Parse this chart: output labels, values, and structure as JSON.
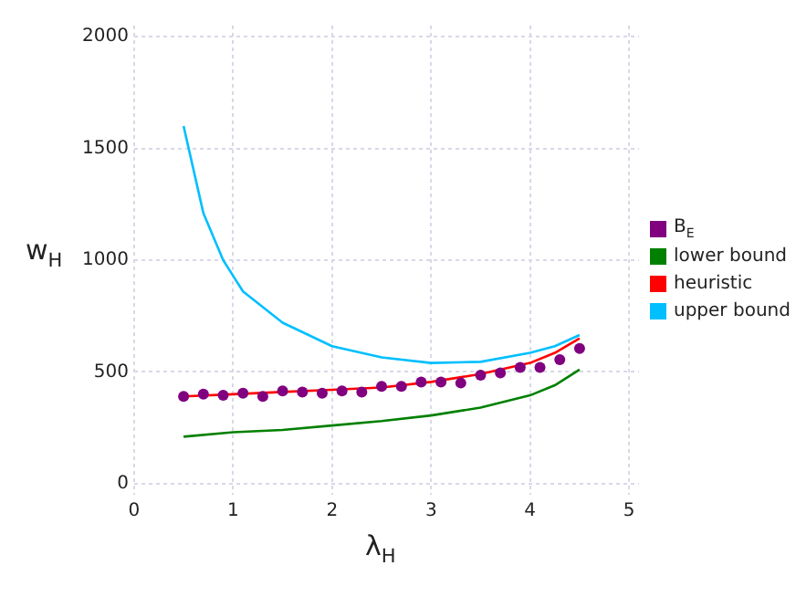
{
  "chart_data": {
    "type": "line",
    "xlabel": "λ$_{H}$",
    "ylabel": "w$_{H}$",
    "xlim": [
      0,
      5.1
    ],
    "xticks": [
      0,
      1,
      2,
      3,
      4,
      5
    ],
    "ylim": [
      -50,
      2050
    ],
    "yticks": [
      0,
      500,
      1000,
      1500,
      2000
    ],
    "grid": true,
    "legend": "right",
    "line_style": "solid",
    "series": [
      {
        "name": "B$_{E}$",
        "type": "scatter",
        "marker": "circle",
        "color": "#800080",
        "x": [
          0.5,
          0.7,
          0.9,
          1.1,
          1.3,
          1.5,
          1.7,
          1.9,
          2.1,
          2.3,
          2.5,
          2.7,
          2.9,
          3.1,
          3.3,
          3.5,
          3.7,
          3.9,
          4.1,
          4.3,
          4.5
        ],
        "values": [
          390,
          400,
          395,
          405,
          390,
          415,
          410,
          405,
          415,
          410,
          435,
          435,
          455,
          455,
          450,
          485,
          495,
          520,
          520,
          555,
          605
        ]
      },
      {
        "name": "lower bound",
        "type": "line",
        "marker": "none",
        "color": "#008000",
        "x": [
          0.5,
          1,
          1.5,
          2,
          2.5,
          3,
          3.5,
          4,
          4.25,
          4.5
        ],
        "values": [
          210,
          230,
          240,
          260,
          280,
          305,
          340,
          395,
          440,
          510
        ]
      },
      {
        "name": "heuristic",
        "type": "line",
        "marker": "none",
        "color": "#ff0000",
        "x": [
          0.5,
          1,
          1.5,
          2,
          2.5,
          3,
          3.5,
          4,
          4.25,
          4.5
        ],
        "values": [
          390,
          400,
          410,
          420,
          430,
          455,
          490,
          540,
          585,
          650
        ]
      },
      {
        "name": "upper bound",
        "type": "line",
        "marker": "none",
        "color": "#00bfff",
        "x": [
          0.5,
          0.7,
          0.9,
          1,
          1.1,
          1.5,
          2,
          2.5,
          3,
          3.5,
          4,
          4.25,
          4.5
        ],
        "values": [
          1600,
          1210,
          1000,
          930,
          860,
          720,
          615,
          565,
          540,
          545,
          585,
          615,
          665
        ]
      }
    ]
  }
}
